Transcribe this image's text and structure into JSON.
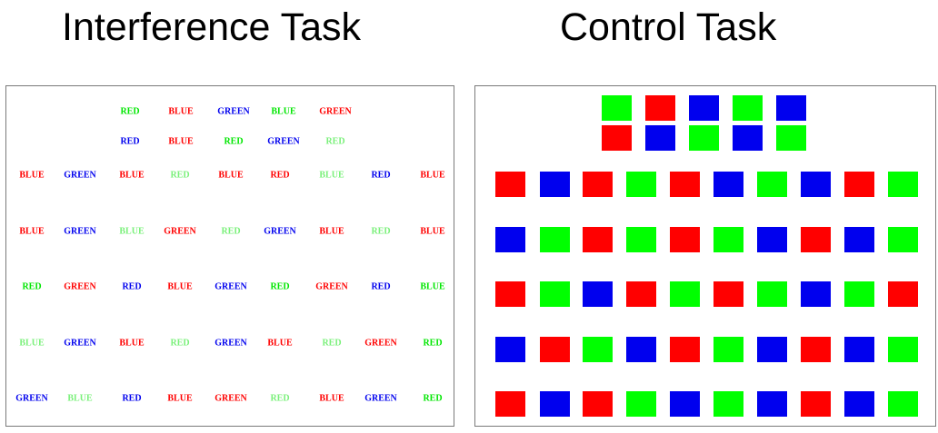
{
  "titles": {
    "left": "Interference Task",
    "right": "Control Task"
  },
  "colors": {
    "RED": "#ff0000",
    "BLUE": "#0000ee",
    "GREEN": "#00ff00",
    "GREEN_WORD": "#00e600",
    "GREEN_WORD_LIGHT": "#7af07a"
  },
  "interference_rows": [
    [
      [
        "RED",
        "G"
      ],
      [
        "BLUE",
        "R"
      ],
      [
        "GREEN",
        "B"
      ],
      [
        "BLUE",
        "G"
      ],
      [
        "GREEN",
        "R"
      ]
    ],
    [
      [
        "RED",
        "B"
      ],
      [
        "BLUE",
        "R"
      ],
      [
        "RED",
        "G"
      ],
      [
        "GREEN",
        "B"
      ],
      [
        "RED",
        "g"
      ]
    ],
    [
      [
        "BLUE",
        "R"
      ],
      [
        "GREEN",
        "B"
      ],
      [
        "BLUE",
        "R"
      ],
      [
        "RED",
        "g"
      ],
      [
        "BLUE",
        "R"
      ],
      [
        "RED",
        "R"
      ],
      [
        "BLUE",
        "g"
      ],
      [
        "RED",
        "B"
      ],
      [
        "BLUE",
        "R"
      ]
    ],
    [
      [
        "BLUE",
        "R"
      ],
      [
        "GREEN",
        "B"
      ],
      [
        "BLUE",
        "g"
      ],
      [
        "GREEN",
        "R"
      ],
      [
        "RED",
        "g"
      ],
      [
        "GREEN",
        "B"
      ],
      [
        "BLUE",
        "R"
      ],
      [
        "RED",
        "g"
      ],
      [
        "BLUE",
        "R"
      ]
    ],
    [
      [
        "RED",
        "G"
      ],
      [
        "GREEN",
        "R"
      ],
      [
        "RED",
        "B"
      ],
      [
        "BLUE",
        "R"
      ],
      [
        "GREEN",
        "B"
      ],
      [
        "RED",
        "G"
      ],
      [
        "GREEN",
        "R"
      ],
      [
        "RED",
        "B"
      ],
      [
        "BLUE",
        "G"
      ]
    ],
    [
      [
        "BLUE",
        "g"
      ],
      [
        "GREEN",
        "B"
      ],
      [
        "BLUE",
        "R"
      ],
      [
        "RED",
        "g"
      ],
      [
        "GREEN",
        "B"
      ],
      [
        "BLUE",
        "R"
      ],
      [
        "RED",
        "g"
      ],
      [
        "GREEN",
        "R"
      ],
      [
        "RED",
        "G"
      ]
    ],
    [
      [
        "GREEN",
        "B"
      ],
      [
        "BLUE",
        "g"
      ],
      [
        "RED",
        "B"
      ],
      [
        "BLUE",
        "R"
      ],
      [
        "GREEN",
        "R"
      ],
      [
        "RED",
        "g"
      ],
      [
        "BLUE",
        "R"
      ],
      [
        "GREEN",
        "B"
      ],
      [
        "RED",
        "G"
      ]
    ]
  ],
  "control_rows": [
    [
      "G",
      "R",
      "B",
      "G",
      "B"
    ],
    [
      "R",
      "B",
      "G",
      "B",
      "G"
    ],
    [
      "R",
      "B",
      "R",
      "G",
      "R",
      "B",
      "G",
      "B",
      "R",
      "G"
    ],
    [
      "B",
      "G",
      "R",
      "G",
      "R",
      "G",
      "B",
      "R",
      "B",
      "G"
    ],
    [
      "R",
      "G",
      "B",
      "R",
      "G",
      "R",
      "G",
      "B",
      "G",
      "R"
    ],
    [
      "B",
      "R",
      "G",
      "B",
      "R",
      "G",
      "B",
      "R",
      "B",
      "G"
    ],
    [
      "R",
      "B",
      "R",
      "G",
      "B",
      "G",
      "B",
      "R",
      "B",
      "G"
    ]
  ]
}
